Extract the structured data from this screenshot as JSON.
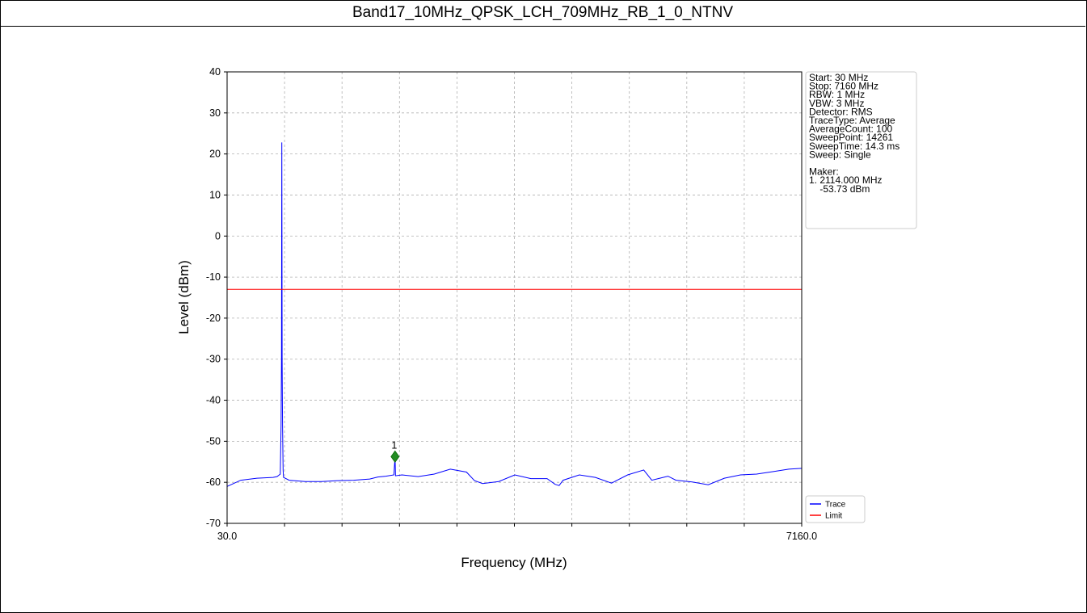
{
  "title": "Band17_10MHz_QPSK_LCH_709MHz_RB_1_0_NTNV",
  "chart_data": {
    "type": "line",
    "xlabel": "Frequency (MHz)",
    "ylabel": "Level (dBm)",
    "xlim": [
      30.0,
      7160.0
    ],
    "ylim": [
      -70,
      40
    ],
    "x_tick_labels": [
      "30.0",
      "7160.0"
    ],
    "y_ticks": [
      40,
      30,
      20,
      10,
      0,
      -10,
      -20,
      -30,
      -40,
      -50,
      -60,
      -70
    ],
    "grid": true,
    "legend_position": "lower-right-outside",
    "series": [
      {
        "name": "Trace",
        "color": "#0000ff",
        "x": [
          30,
          200,
          400,
          600,
          650,
          690,
          700,
          705,
          709,
          713,
          718,
          725,
          730,
          800,
          1000,
          1200,
          1400,
          1600,
          1800,
          1900,
          2000,
          2100,
          2114,
          2120,
          2200,
          2400,
          2600,
          2800,
          3000,
          3100,
          3200,
          3400,
          3600,
          3800,
          4000,
          4100,
          4150,
          4200,
          4400,
          4600,
          4800,
          5000,
          5200,
          5300,
          5400,
          5500,
          5600,
          5800,
          6000,
          6200,
          6400,
          6600,
          6800,
          7000,
          7160
        ],
        "y": [
          -61,
          -59.5,
          -59,
          -58.8,
          -58.6,
          -58,
          -46,
          -30,
          22.8,
          -30,
          -46,
          -57,
          -58.8,
          -59.5,
          -59.8,
          -59.8,
          -59.6,
          -59.5,
          -59.2,
          -58.7,
          -58.5,
          -58.2,
          -53.7,
          -58.4,
          -58.2,
          -58.6,
          -58,
          -56.8,
          -57.5,
          -59.6,
          -60.3,
          -59.8,
          -58.2,
          -59.1,
          -59.1,
          -60.5,
          -60.8,
          -59.5,
          -58.2,
          -58.8,
          -60.2,
          -58.2,
          -57,
          -59.5,
          -59,
          -58.5,
          -59.5,
          -59.9,
          -60.6,
          -59,
          -58.2,
          -58,
          -57.4,
          -56.8,
          -56.6
        ]
      },
      {
        "name": "Limit",
        "color": "#ff0000",
        "x": [
          30,
          7160
        ],
        "y": [
          -13,
          -13
        ]
      }
    ],
    "marker": {
      "label": "1",
      "x": 2114.0,
      "y": -53.73,
      "color": "#228b22"
    }
  },
  "info_box": [
    "Start: 30 MHz",
    "Stop: 7160 MHz",
    "RBW: 1 MHz",
    "VBW: 3 MHz",
    "Detector: RMS",
    "TraceType: Average",
    "AverageCount: 100",
    "SweepPoint: 14261",
    "SweepTime: 14.3 ms",
    "Sweep: Single",
    "",
    "Maker:",
    "1. 2114.000 MHz",
    "    -53.73 dBm"
  ]
}
